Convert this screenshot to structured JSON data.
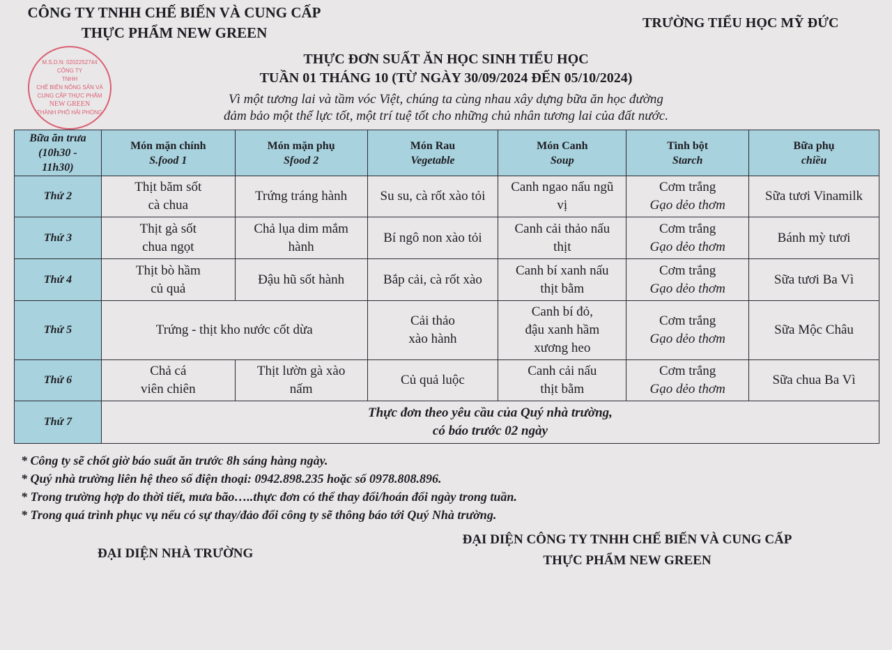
{
  "company": {
    "line1": "CÔNG TY TNHH CHẾ BIẾN VÀ CUNG CẤP",
    "line2": "THỰC PHẨM NEW GREEN"
  },
  "stamp": {
    "outer": "M.S.D.N: 0202252744",
    "top": "CÔNG TY",
    "l1": "TNHH",
    "l2": "CHẾ BIẾN NÔNG SẢN VÀ",
    "l3": "CUNG CẤP THỰC PHẨM",
    "l4": "NEW GREEN",
    "bottom": "THÀNH PHỐ HẢI PHÒNG",
    "color": "#d9475e"
  },
  "school": "TRƯỜNG TIỂU HỌC MỸ ĐỨC",
  "title": {
    "line1": "THỰC ĐƠN SUẤT ĂN HỌC SINH TIỂU HỌC",
    "line2": "TUẦN 01 THÁNG 10 (TỪ NGÀY 30/09/2024 ĐẾN 05/10/2024)"
  },
  "slogan": {
    "line1": "Vì một tương lai và tầm vóc Việt, chúng ta cùng nhau xây dựng bữa ăn học đường",
    "line2": "đảm bảo một thể lực tốt, một trí tuệ tốt cho những chủ nhân tương lai của đất nước."
  },
  "table": {
    "header": [
      {
        "l1": "Bữa ăn trưa",
        "l2": "(10h30 -",
        "l3": "11h30)"
      },
      {
        "l1": "Món mặn chính",
        "l2": "S.food 1"
      },
      {
        "l1": "Món mặn phụ",
        "l2": "Sfood 2"
      },
      {
        "l1": "Món Rau",
        "l2": "Vegetable"
      },
      {
        "l1": "Món Canh",
        "l2": "Soup"
      },
      {
        "l1": "Tinh bột",
        "l2": "Starch"
      },
      {
        "l1": "Bữa phụ",
        "l2": "chiều"
      }
    ],
    "rows": [
      {
        "day": "Thứ 2",
        "c1": [
          "Thịt băm sốt",
          "cà chua"
        ],
        "c2": [
          "Trứng tráng hành"
        ],
        "c3": [
          "Su su, cà rốt xào tỏi"
        ],
        "c4": [
          "Canh ngao nấu ngũ",
          "vị"
        ],
        "c5": [
          "Cơm trắng",
          "Gạo dẻo thơm"
        ],
        "c6": "Sữa tươi Vinamilk"
      },
      {
        "day": "Thứ 3",
        "c1": [
          "Thịt gà sốt",
          "chua ngọt"
        ],
        "c2": [
          "Chả lụa dim mắm",
          "hành"
        ],
        "c3": [
          "Bí ngô non xào tỏi"
        ],
        "c4": [
          "Canh cải thảo nấu",
          "thịt"
        ],
        "c5": [
          "Cơm trắng",
          "Gạo dẻo thơm"
        ],
        "c6": "Bánh mỳ tươi"
      },
      {
        "day": "Thứ 4",
        "c1": [
          "Thịt bò hầm",
          "củ quả"
        ],
        "c2": [
          "Đậu hũ sốt hành"
        ],
        "c3": [
          "Bắp cải, cà rốt xào"
        ],
        "c4": [
          "Canh bí xanh nấu",
          "thịt bằm"
        ],
        "c5": [
          "Cơm trắng",
          "Gạo dẻo thơm"
        ],
        "c6": "Sữa tươi Ba Vì"
      },
      {
        "day": "Thứ 5",
        "c12": "Trứng - thịt kho nước cốt dừa",
        "c3": [
          "Cải thảo",
          "xào hành"
        ],
        "c4": [
          "Canh bí đỏ,",
          "đậu xanh hầm",
          "xương heo"
        ],
        "c5": [
          "Cơm trắng",
          "Gạo dẻo thơm"
        ],
        "c6": "Sữa Mộc Châu"
      },
      {
        "day": "Thứ 6",
        "c1": [
          "Chả cá",
          "viên chiên"
        ],
        "c2": [
          "Thịt lườn gà xào",
          "nấm"
        ],
        "c3": [
          "Củ quả luộc"
        ],
        "c4": [
          "Canh cải nấu",
          "thịt bằm"
        ],
        "c5": [
          "Cơm trắng",
          "Gạo dẻo thơm"
        ],
        "c6": "Sữa chua Ba Vì"
      },
      {
        "day": "Thứ 7",
        "all": [
          "Thực đơn theo yêu cầu của Quý nhà trường,",
          "có báo trước 02 ngày"
        ]
      }
    ]
  },
  "notes": [
    "* Công ty sẽ chốt giờ báo suất ăn trước 8h sáng hàng ngày.",
    "* Quý nhà trường liên hệ theo số điện thoại: 0942.898.235 hoặc số 0978.808.896.",
    "* Trong trường hợp do thời tiết, mưa bão…..thực đơn có thể thay đổi/hoán đổi ngày trong tuần.",
    "* Trong quá trình phục vụ nếu có sự thay/đảo đổi công ty sẽ thông báo tới Quý Nhà trường."
  ],
  "signatures": {
    "school": "ĐẠI DIỆN NHÀ TRƯỜNG",
    "company_l1": "ĐẠI DIỆN CÔNG TY TNHH CHẾ BIẾN VÀ CUNG CẤP",
    "company_l2": "THỰC PHẨM NEW GREEN"
  },
  "colors": {
    "header_bg": "#a8d2de",
    "paper": "#e9e7e8"
  }
}
